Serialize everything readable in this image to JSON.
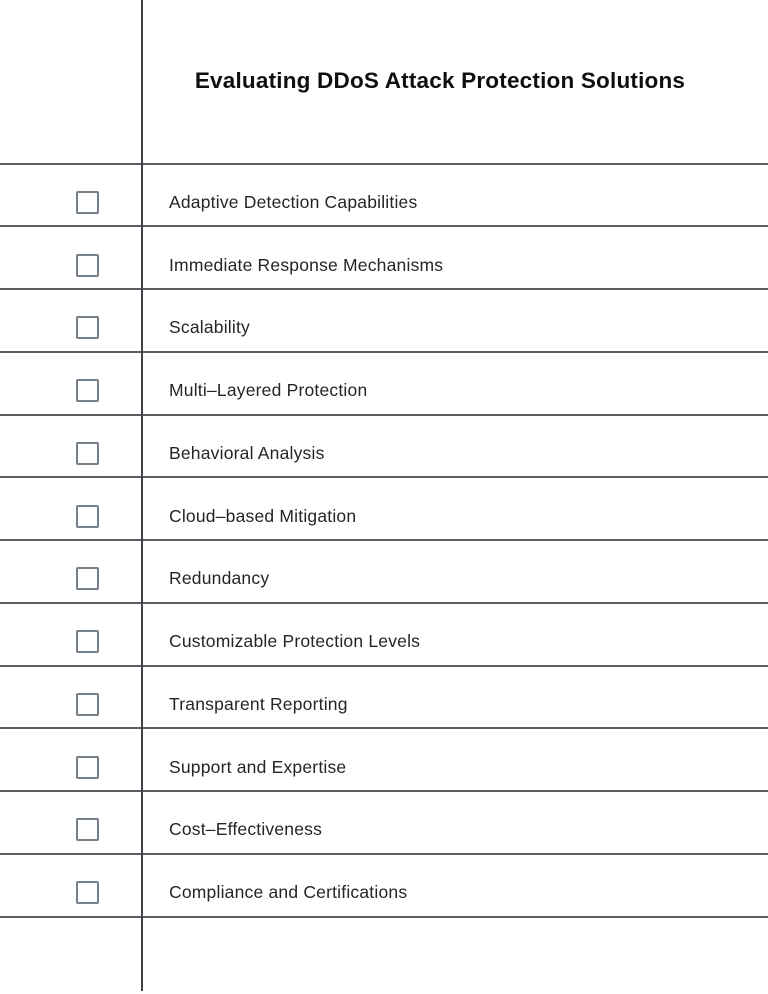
{
  "document": {
    "title": "Evaluating DDoS Attack Protection Solutions"
  },
  "checklist": {
    "items": [
      {
        "label": "Adaptive Detection Capabilities",
        "checked": false
      },
      {
        "label": "Immediate Response Mechanisms",
        "checked": false
      },
      {
        "label": "Scalability",
        "checked": false
      },
      {
        "label": "Multi–Layered Protection",
        "checked": false
      },
      {
        "label": "Behavioral Analysis",
        "checked": false
      },
      {
        "label": "Cloud–based Mitigation",
        "checked": false
      },
      {
        "label": "Redundancy",
        "checked": false
      },
      {
        "label": "Customizable Protection Levels",
        "checked": false
      },
      {
        "label": "Transparent Reporting",
        "checked": false
      },
      {
        "label": "Support and Expertise",
        "checked": false
      },
      {
        "label": "Cost–Effectiveness",
        "checked": false
      },
      {
        "label": "Compliance and Certifications",
        "checked": false
      }
    ]
  },
  "colors": {
    "background": "#ffffff",
    "row_line": "#5b5f64",
    "column_divider": "#3e4246",
    "checkbox_border": "#76808a",
    "item_text": "#232629",
    "title_text": "#0f0f10"
  }
}
